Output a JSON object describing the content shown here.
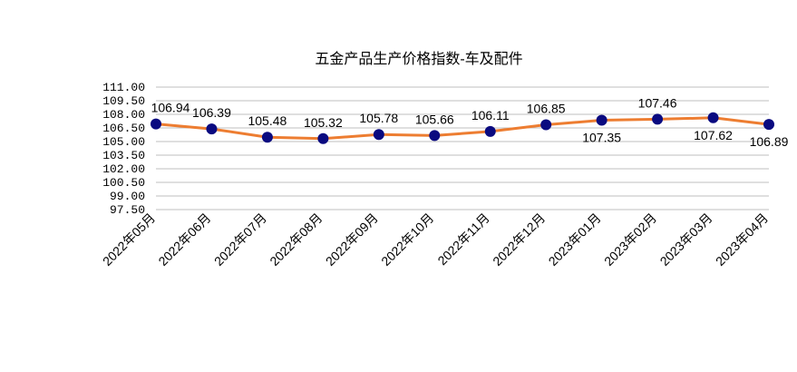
{
  "chart_data": {
    "type": "line",
    "title": "五金产品生产价格指数-车及配件",
    "categories": [
      "2022年05月",
      "2022年06月",
      "2022年07月",
      "2022年08月",
      "2022年09月",
      "2022年10月",
      "2022年11月",
      "2022年12月",
      "2023年01月",
      "2023年02月",
      "2023年03月",
      "2023年04月"
    ],
    "series": [
      {
        "values": [
          106.94,
          106.39,
          105.48,
          105.32,
          105.78,
          105.66,
          106.11,
          106.85,
          107.35,
          107.46,
          107.62,
          106.89
        ],
        "color": "#ED7D31",
        "marker_color": "#0A0A80"
      }
    ],
    "ylim": [
      97.5,
      111
    ],
    "yticks": [
      {
        "value": 97.5,
        "label": "97.50"
      },
      {
        "value": 99,
        "label": "99.00"
      },
      {
        "value": 100.5,
        "label": "100.50"
      },
      {
        "value": 102,
        "label": "102.00"
      },
      {
        "value": 103.5,
        "label": "103.50"
      },
      {
        "value": 105,
        "label": "105.00"
      },
      {
        "value": 106.5,
        "label": "106.50"
      },
      {
        "value": 108,
        "label": "108.00"
      },
      {
        "value": 109.5,
        "label": "109.50"
      },
      {
        "value": 111,
        "label": "111.00"
      }
    ],
    "grid": true
  }
}
